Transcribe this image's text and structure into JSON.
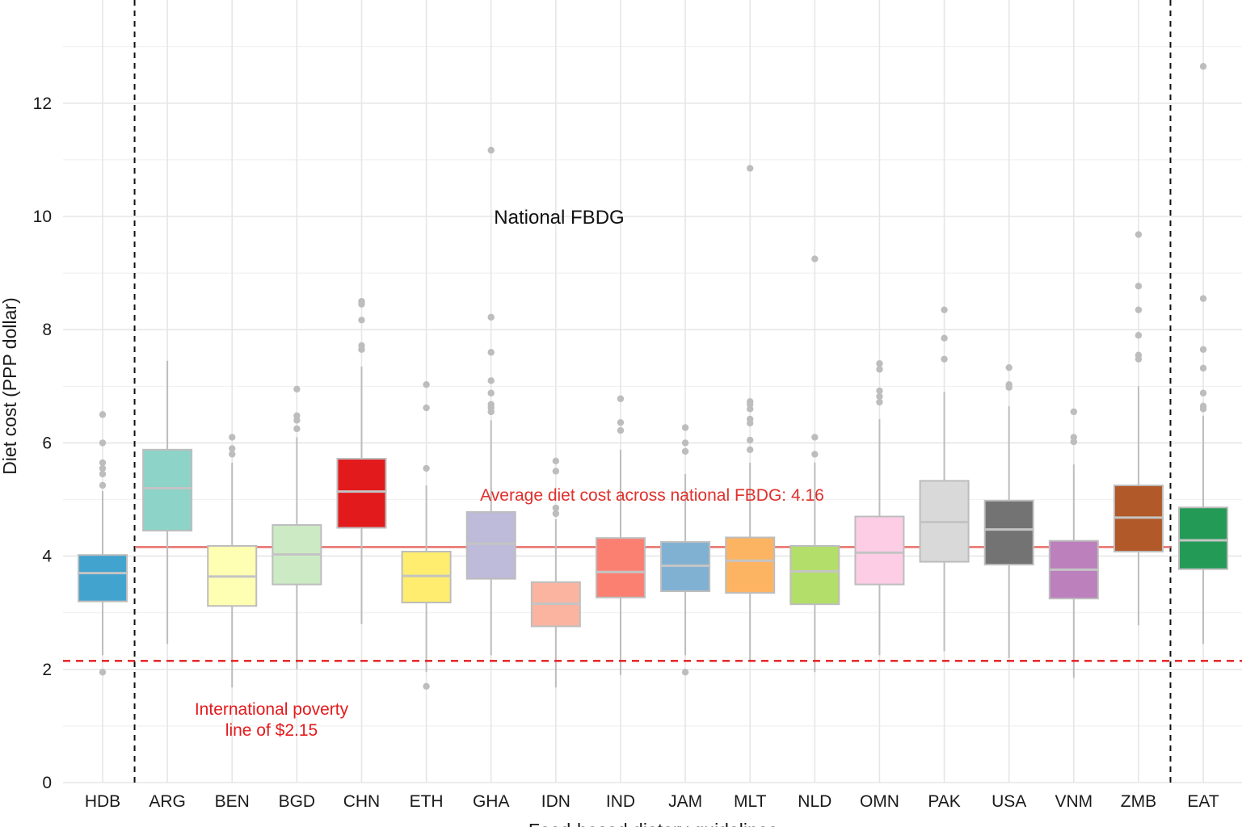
{
  "chart_data": {
    "type": "boxplot",
    "xlabel": "Food-based dietary guidelines",
    "ylabel": "Diet cost (PPP dollar)",
    "ylim": [
      0,
      13.8
    ],
    "yticks": [
      0,
      2,
      4,
      6,
      8,
      10,
      12
    ],
    "ytick_labels": [
      "0",
      "2",
      "4",
      "6",
      "8",
      "10",
      "12"
    ],
    "group_label": "National FBDG",
    "reference_lines": {
      "poverty": {
        "value": 2.15,
        "label_line1": "International poverty",
        "label_line2": "line of $2.15",
        "color": "#e41a1c"
      },
      "average": {
        "value": 4.16,
        "label": "Average diet cost across national FBDG: 4.16",
        "color": "#e8716a",
        "label_color": "#e0302c"
      }
    },
    "separator_colors": {
      "dashed": "#111111"
    },
    "categories": [
      {
        "name": "HDB",
        "color": "#43a3cf",
        "q1": 3.2,
        "median": 3.7,
        "q3": 4.02,
        "whisker_low": 2.25,
        "whisker_high": 5.15,
        "outliers": [
          1.95,
          5.25,
          5.45,
          5.55,
          5.65,
          6.0,
          6.5
        ]
      },
      {
        "name": "ARG",
        "color": "#8dd3c7",
        "q1": 4.45,
        "median": 5.2,
        "q3": 5.88,
        "whisker_low": 2.45,
        "whisker_high": 7.45,
        "outliers": []
      },
      {
        "name": "BEN",
        "color": "#ffffb3",
        "q1": 3.12,
        "median": 3.64,
        "q3": 4.18,
        "whisker_low": 1.68,
        "whisker_high": 5.65,
        "outliers": [
          5.8,
          5.9,
          6.1
        ]
      },
      {
        "name": "BGD",
        "color": "#ccebc5",
        "q1": 3.5,
        "median": 4.03,
        "q3": 4.55,
        "whisker_low": 2.0,
        "whisker_high": 6.1,
        "outliers": [
          6.25,
          6.4,
          6.48,
          6.95
        ]
      },
      {
        "name": "CHN",
        "color": "#e31a1c",
        "q1": 4.5,
        "median": 5.14,
        "q3": 5.72,
        "whisker_low": 2.8,
        "whisker_high": 7.35,
        "outliers": [
          7.65,
          7.72,
          8.17,
          8.45,
          8.5
        ]
      },
      {
        "name": "ETH",
        "color": "#ffed6f",
        "q1": 3.18,
        "median": 3.65,
        "q3": 4.08,
        "whisker_low": 1.95,
        "whisker_high": 5.25,
        "outliers": [
          1.7,
          5.55,
          6.62,
          7.03
        ]
      },
      {
        "name": "GHA",
        "color": "#bebada",
        "q1": 3.6,
        "median": 4.22,
        "q3": 4.78,
        "whisker_low": 2.25,
        "whisker_high": 6.4,
        "outliers": [
          6.55,
          6.62,
          6.68,
          6.88,
          7.1,
          7.6,
          8.22,
          11.17
        ]
      },
      {
        "name": "IDN",
        "color": "#fbb4a0",
        "q1": 2.76,
        "median": 3.16,
        "q3": 3.54,
        "whisker_low": 1.68,
        "whisker_high": 4.65,
        "outliers": [
          4.75,
          4.85,
          5.5,
          5.68
        ]
      },
      {
        "name": "IND",
        "color": "#fb8072",
        "q1": 3.27,
        "median": 3.72,
        "q3": 4.32,
        "whisker_low": 1.9,
        "whisker_high": 5.88,
        "outliers": [
          6.22,
          6.36,
          6.78
        ]
      },
      {
        "name": "JAM",
        "color": "#80b1d3",
        "q1": 3.38,
        "median": 3.83,
        "q3": 4.25,
        "whisker_low": 2.25,
        "whisker_high": 5.45,
        "outliers": [
          1.95,
          5.85,
          6.0,
          6.27
        ]
      },
      {
        "name": "MLT",
        "color": "#fdb462",
        "q1": 3.35,
        "median": 3.92,
        "q3": 4.33,
        "whisker_low": 2.15,
        "whisker_high": 5.65,
        "outliers": [
          5.88,
          6.05,
          6.35,
          6.42,
          6.6,
          6.68,
          6.73,
          10.85
        ]
      },
      {
        "name": "NLD",
        "color": "#b3de69",
        "q1": 3.15,
        "median": 3.73,
        "q3": 4.18,
        "whisker_low": 1.95,
        "whisker_high": 5.65,
        "outliers": [
          5.8,
          6.1,
          9.25
        ]
      },
      {
        "name": "OMN",
        "color": "#fccde5",
        "q1": 3.5,
        "median": 4.06,
        "q3": 4.7,
        "whisker_low": 2.25,
        "whisker_high": 6.42,
        "outliers": [
          6.72,
          6.82,
          6.92,
          7.3,
          7.4
        ]
      },
      {
        "name": "PAK",
        "color": "#d9d9d9",
        "q1": 3.9,
        "median": 4.6,
        "q3": 5.33,
        "whisker_low": 2.32,
        "whisker_high": 6.9,
        "outliers": [
          7.48,
          7.85,
          8.35
        ]
      },
      {
        "name": "USA",
        "color": "#737373",
        "q1": 3.85,
        "median": 4.47,
        "q3": 4.98,
        "whisker_low": 2.2,
        "whisker_high": 6.65,
        "outliers": [
          6.98,
          7.03,
          7.33
        ]
      },
      {
        "name": "VNM",
        "color": "#bc80bd",
        "q1": 3.25,
        "median": 3.76,
        "q3": 4.27,
        "whisker_low": 1.85,
        "whisker_high": 5.62,
        "outliers": [
          6.02,
          6.1,
          6.55
        ]
      },
      {
        "name": "ZMB",
        "color": "#b15928",
        "q1": 4.08,
        "median": 4.68,
        "q3": 5.25,
        "whisker_low": 2.78,
        "whisker_high": 7.0,
        "outliers": [
          7.48,
          7.55,
          7.9,
          8.35,
          8.77,
          9.68
        ]
      },
      {
        "name": "EAT",
        "color": "#249a57",
        "q1": 3.77,
        "median": 4.28,
        "q3": 4.86,
        "whisker_low": 2.45,
        "whisker_high": 6.48,
        "outliers": [
          6.6,
          6.65,
          6.88,
          7.32,
          7.65,
          8.55,
          12.65
        ]
      }
    ]
  }
}
